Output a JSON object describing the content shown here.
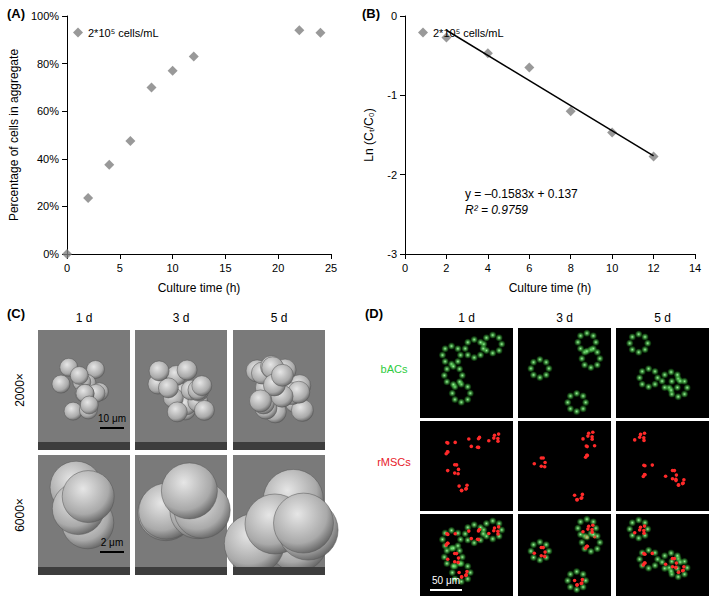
{
  "chart_data": [
    {
      "type": "scatter",
      "title": "(A)",
      "x_label": "Culture time (h)",
      "y_label": "Percentage of cells in aggregate",
      "series": [
        {
          "name": "2*10⁵ cells/mL",
          "type": "scatter",
          "color": "#7f7f7f",
          "marker": "diamond",
          "x": [
            0,
            2,
            4,
            6,
            8,
            10,
            12,
            22,
            24
          ],
          "values": [
            0,
            23.5,
            37.5,
            47.5,
            70,
            77,
            83,
            94,
            93
          ]
        }
      ],
      "xlim": [
        0,
        25
      ],
      "xticks": [
        0,
        5,
        10,
        15,
        20,
        25
      ],
      "ylim": [
        0,
        100
      ],
      "yticks": [
        {
          "value": 0,
          "label": "0%"
        },
        {
          "value": 20,
          "label": "20%"
        },
        {
          "value": 40,
          "label": "40%"
        },
        {
          "value": 60,
          "label": "60%"
        },
        {
          "value": 80,
          "label": "80%"
        },
        {
          "value": 100,
          "label": "100%"
        }
      ],
      "grid": false,
      "legend": "upper left"
    },
    {
      "type": "scatter",
      "title": "(B)",
      "x_label": "Culture time (h)",
      "y_label": "Ln (Cₜ/C₀)",
      "series": [
        {
          "name": "2*10⁵ cells/mL",
          "type": "scatter",
          "color": "#7f7f7f",
          "marker": "diamond",
          "x": [
            2,
            4,
            6,
            8,
            10,
            12
          ],
          "values": [
            -0.27,
            -0.47,
            -0.65,
            -1.2,
            -1.47,
            -1.77
          ]
        },
        {
          "type": "line",
          "color": "#000000",
          "line_style": "solid",
          "x": [
            2,
            12
          ],
          "values": [
            -0.1796,
            -1.7626
          ]
        }
      ],
      "annotations": [
        "y = –0.1583x + 0.137",
        "R² = 0.9759"
      ],
      "xlim": [
        0,
        14
      ],
      "xticks": [
        0,
        2,
        4,
        6,
        8,
        10,
        12,
        14
      ],
      "ylim": [
        -3,
        0
      ],
      "yticks": [
        -3,
        -2,
        -1,
        0
      ],
      "grid": false,
      "legend": "upper left"
    }
  ],
  "panels": [
    {
      "label": "(C)",
      "columns": [
        "1 d",
        "3 d",
        "5 d"
      ],
      "rows": [
        "2000×",
        "6000×"
      ],
      "scale_bars": [
        "10 μm",
        "2 μm"
      ]
    },
    {
      "label": "(D)",
      "columns": [
        "1 d",
        "3 d",
        "5 d"
      ],
      "rows": [
        {
          "text": "bACs",
          "color": "#2ecc40"
        },
        {
          "text": "rMSCs",
          "color": "#e8202a"
        }
      ],
      "scale_bar": "50 μm"
    }
  ]
}
